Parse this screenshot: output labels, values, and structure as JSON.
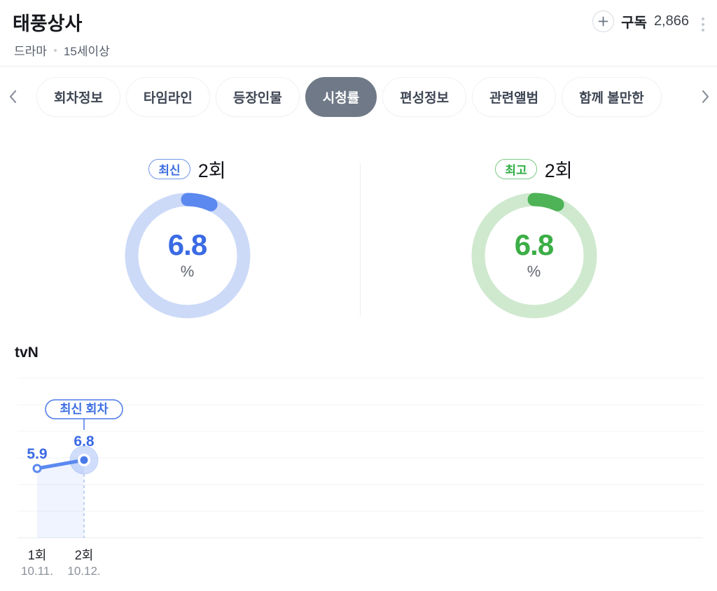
{
  "header": {
    "title": "태풍상사",
    "category": "드라마",
    "age_rating": "15세이상",
    "subscribe": {
      "label": "구독",
      "count": "2,866"
    }
  },
  "tabs": {
    "items": [
      {
        "label": "회차정보"
      },
      {
        "label": "타임라인"
      },
      {
        "label": "등장인물"
      },
      {
        "label": "시청률"
      },
      {
        "label": "편성정보"
      },
      {
        "label": "관련앨범"
      },
      {
        "label": "함께 볼만한"
      }
    ],
    "selected": "시청률"
  },
  "channel_label": "tvN",
  "chart_data": [
    {
      "type": "donut",
      "name": "latest-rating",
      "badge": "최신",
      "episode": "2회",
      "value": 6.8,
      "max": 100,
      "unit": "%",
      "color": "#5b89ef",
      "track_color": "#ccdaf8"
    },
    {
      "type": "donut",
      "name": "best-rating",
      "badge": "최고",
      "episode": "2회",
      "value": 6.8,
      "max": 100,
      "unit": "%",
      "color": "#4db356",
      "track_color": "#cfe9cf"
    },
    {
      "type": "line",
      "name": "tvn-ratings-trend",
      "title": "tvN",
      "categories": [
        "1회",
        "2회"
      ],
      "dates": [
        "10.11.",
        "10.12."
      ],
      "values": [
        5.9,
        6.8
      ],
      "point_labels": [
        "5.9",
        "6.8"
      ],
      "annotation": "최신 회차",
      "unit": "%",
      "grid": true,
      "line_color": "#5b89ef",
      "area_color": "rgba(91,137,239,0.09)"
    }
  ],
  "colors": {
    "accent_blue": "#3d6ee2",
    "accent_green": "#3bae4a",
    "selected_tab_bg": "#6f7987"
  }
}
